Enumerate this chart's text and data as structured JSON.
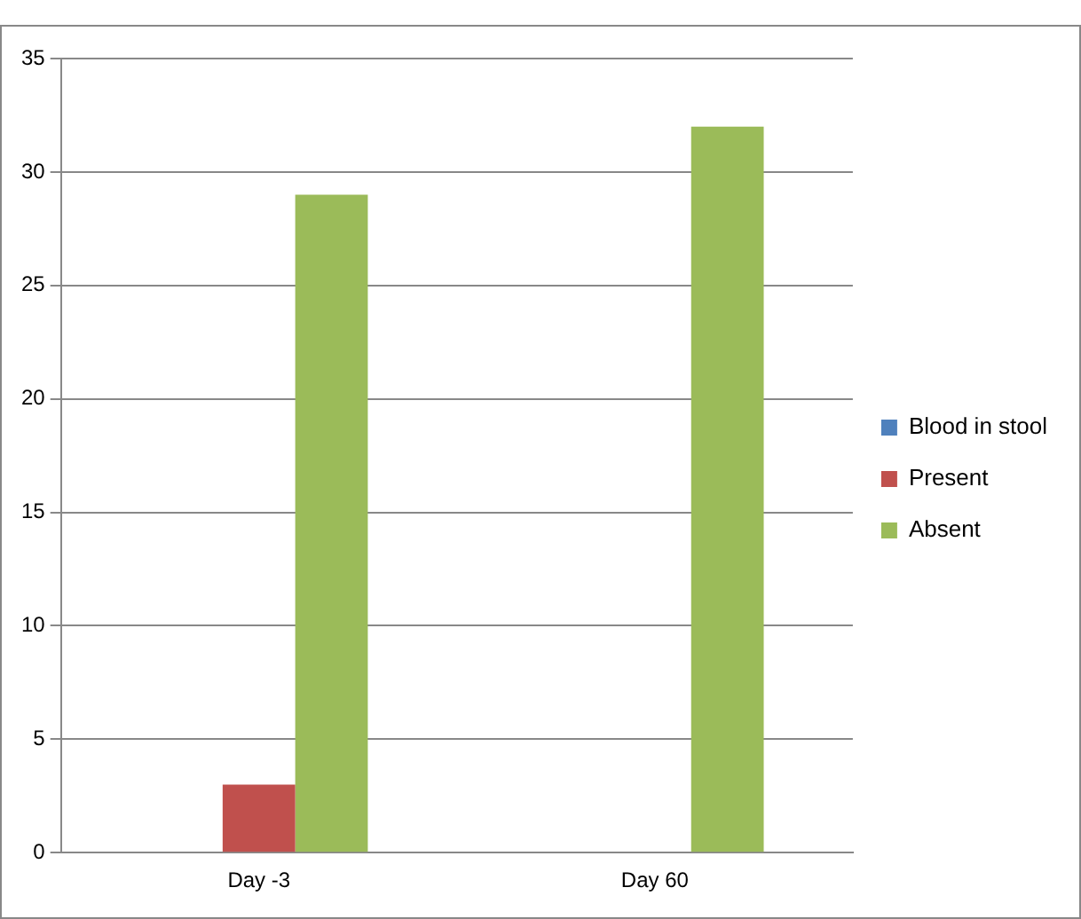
{
  "chart_data": {
    "type": "bar",
    "categories": [
      "Day -3",
      "Day 60"
    ],
    "series": [
      {
        "name": "Blood in stool",
        "color": "#4f81bd",
        "values": [
          null,
          null
        ]
      },
      {
        "name": "Present",
        "color": "#c0504d",
        "values": [
          3,
          0
        ]
      },
      {
        "name": "Absent",
        "color": "#9bbb59",
        "values": [
          29,
          32
        ]
      }
    ],
    "ylim": [
      0,
      35
    ],
    "yticks": [
      0,
      5,
      10,
      15,
      20,
      25,
      30,
      35
    ],
    "grid": "y",
    "legend": "right"
  }
}
